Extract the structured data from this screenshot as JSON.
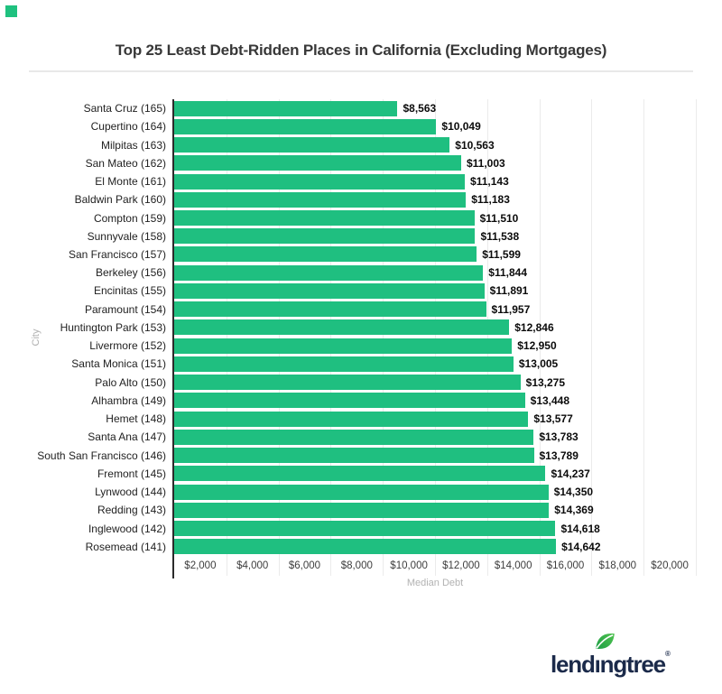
{
  "page": {
    "brand_square_color": "#1fc17f"
  },
  "header": {
    "title": "Top 25 Least Debt-Ridden Places in California (Excluding Mortgages)"
  },
  "chart_data": {
    "type": "bar",
    "orientation": "horizontal",
    "title": "Top 25 Least Debt-Ridden Places in California (Excluding Mortgages)",
    "xlabel": "Median Debt",
    "ylabel": "City",
    "xlim": [
      0,
      20000
    ],
    "grid": true,
    "bar_color": "#1fbf80",
    "x_tick_labels": [
      "$2,000",
      "$4,000",
      "$6,000",
      "$8,000",
      "$10,000",
      "$12,000",
      "$14,000",
      "$16,000",
      "$18,000",
      "$20,000"
    ],
    "categories": [
      "Santa Cruz (165)",
      "Cupertino (164)",
      "Milpitas (163)",
      "San Mateo (162)",
      "El Monte (161)",
      "Baldwin Park (160)",
      "Compton (159)",
      "Sunnyvale (158)",
      "San Francisco (157)",
      "Berkeley (156)",
      "Encinitas (155)",
      "Paramount (154)",
      "Huntington Park (153)",
      "Livermore (152)",
      "Santa Monica (151)",
      "Palo Alto (150)",
      "Alhambra (149)",
      "Hemet (148)",
      "Santa Ana (147)",
      "South San Francisco (146)",
      "Fremont (145)",
      "Lynwood (144)",
      "Redding (143)",
      "Inglewood (142)",
      "Rosemead (141)"
    ],
    "values": [
      8563,
      10049,
      10563,
      11003,
      11143,
      11183,
      11510,
      11538,
      11599,
      11844,
      11891,
      11957,
      12846,
      12950,
      13005,
      13275,
      13448,
      13577,
      13783,
      13789,
      14237,
      14350,
      14369,
      14618,
      14642
    ],
    "value_labels": [
      "$8,563",
      "$10,049",
      "$10,563",
      "$11,003",
      "$11,143",
      "$11,183",
      "$11,510",
      "$11,538",
      "$11,599",
      "$11,844",
      "$11,891",
      "$11,957",
      "$12,846",
      "$12,950",
      "$13,005",
      "$13,275",
      "$13,448",
      "$13,577",
      "$13,783",
      "$13,789",
      "$14,237",
      "$14,350",
      "$14,369",
      "$14,618",
      "$14,642"
    ]
  },
  "footer": {
    "logo_text": "lendingtree",
    "logo_display": "lendıngtree",
    "registered_mark": "®",
    "logo_color": "#1b2a4a",
    "leaf_color_dark": "#1e9e46",
    "leaf_color_light": "#4fc24f"
  }
}
